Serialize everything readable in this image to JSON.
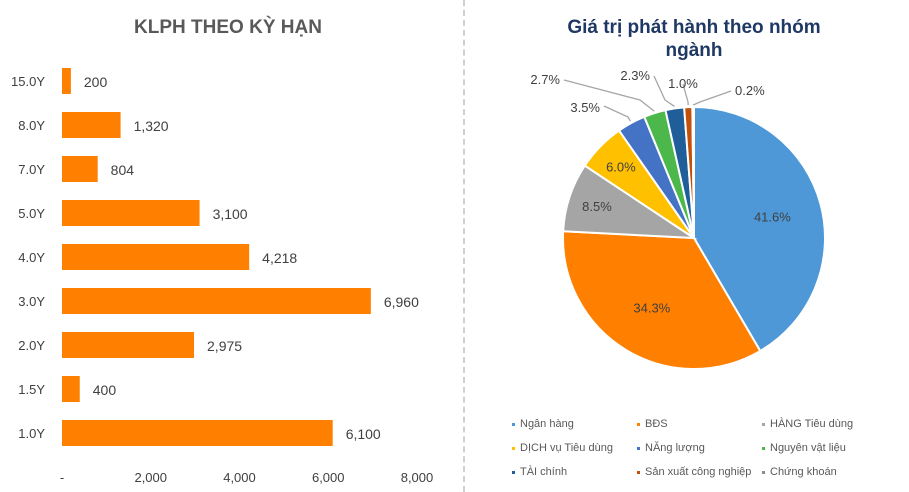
{
  "chart_data": [
    {
      "type": "bar",
      "orientation": "horizontal",
      "title": "KLPH THEO KỲ HẠN",
      "categories": [
        "15.0Y",
        "8.0Y",
        "7.0Y",
        "5.0Y",
        "4.0Y",
        "3.0Y",
        "2.0Y",
        "1.5Y",
        "1.0Y"
      ],
      "values": [
        200,
        1320,
        804,
        3100,
        4218,
        6960,
        2975,
        400,
        6100
      ],
      "value_labels": [
        "200",
        "1,320",
        "804",
        "3,100",
        "4,218",
        "6,960",
        "2,975",
        "400",
        "6,100"
      ],
      "xlim": [
        0,
        8000
      ],
      "xticks": [
        "-",
        "2,000",
        "4,000",
        "6,000",
        "8,000"
      ],
      "xtick_values": [
        0,
        2000,
        4000,
        6000,
        8000
      ],
      "color": "#FF7F00",
      "grid": false
    },
    {
      "type": "pie",
      "title": "Giá trị phát hành theo nhóm ngành",
      "title_color": "#1F3864",
      "labels": [
        "Ngân hàng",
        "BĐS",
        "HÀNG Tiêu dùng",
        "DỊCH vụ Tiêu dùng",
        "NĂng lượng",
        "Nguyên vật liệu",
        "TÀI chính",
        "Sản xuất công nghiệp",
        "Chứng khoán"
      ],
      "values": [
        41.6,
        34.3,
        8.5,
        6.0,
        3.5,
        2.7,
        2.3,
        1.0,
        0.2
      ],
      "value_labels": [
        "41.6%",
        "34.3%",
        "8.5%",
        "6.0%",
        "3.5%",
        "2.7%",
        "2.3%",
        "1.0%",
        "0.2%"
      ],
      "colors": [
        "#4E98D8",
        "#FF7F00",
        "#A5A5A5",
        "#FFC000",
        "#4472C4",
        "#4CB84C",
        "#1F5E99",
        "#C0500A",
        "#8C8C8C"
      ],
      "legend_position": "bottom"
    }
  ]
}
